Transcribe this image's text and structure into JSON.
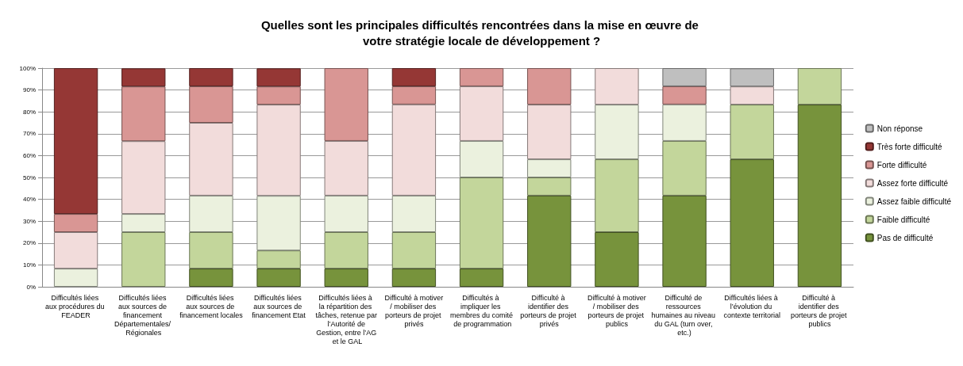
{
  "chart_data": {
    "type": "bar",
    "stacked": true,
    "title": "Quelles sont les principales difficultés rencontrées dans la mise en œuvre de votre stratégie locale de développement ?",
    "categories": [
      "Difficultés liées aux procédures du FEADER",
      "Difficultés liées aux sources de financement Départementales/ Régionales",
      "Difficultés liées aux sources de financement locales",
      "Difficultés liées aux sources de financement Etat",
      "Difficultés liées à la répartition des tâches, retenue par l’Autorité de Gestion, entre l’AG et le GAL",
      "Difficulté à motiver/ mobiliser des porteurs de projet privés",
      "Difficultés à impliquer les membres du comité de programmation",
      "Difficulté à identifier des porteurs de projet privés",
      "Difficulté à motiver/ mobiliser des porteurs de projet publics",
      "Difficulté de ressources humaines au niveau du GAL (turn over, etc.)",
      "Difficultés liées à l’évolution du contexte territorial",
      "Difficulté à identifier des porteurs de projet publics"
    ],
    "series": [
      {
        "name": "Pas de difficulté",
        "color": "#77933c",
        "values": [
          0,
          0,
          8.3,
          8.3,
          8.3,
          8.3,
          8.3,
          41.7,
          25,
          41.7,
          58.3,
          83.3
        ]
      },
      {
        "name": "Faible difficulté",
        "color": "#c3d69b",
        "values": [
          0,
          25,
          16.7,
          8.3,
          16.7,
          16.7,
          41.7,
          8.3,
          33.3,
          25,
          25,
          16.7
        ]
      },
      {
        "name": "Assez faible difficulté",
        "color": "#ebf1de",
        "values": [
          8.3,
          8.3,
          16.7,
          25,
          16.7,
          16.7,
          16.7,
          8.3,
          25,
          16.7,
          0,
          0
        ]
      },
      {
        "name": "Assez forte difficulté",
        "color": "#f2dcdb",
        "values": [
          16.7,
          33.3,
          33.3,
          41.7,
          25,
          41.7,
          25,
          25,
          16.7,
          0,
          8.3,
          0
        ]
      },
      {
        "name": "Forte difficulté",
        "color": "#d99694",
        "values": [
          8.3,
          25,
          16.7,
          8.3,
          33.3,
          8.3,
          8.3,
          16.7,
          0,
          8.3,
          0,
          0
        ]
      },
      {
        "name": "Très forte difficulté",
        "color": "#953735",
        "values": [
          66.7,
          8.3,
          8.3,
          8.3,
          0,
          8.3,
          0,
          0,
          0,
          0,
          0,
          0
        ]
      },
      {
        "name": "Non réponse",
        "color": "#bfbfbf",
        "values": [
          0,
          0,
          0,
          0,
          0,
          0,
          0,
          0,
          0,
          8.3,
          8.3,
          0
        ]
      }
    ],
    "ylim": [
      0,
      100
    ],
    "yticks": [
      {
        "value": 0,
        "label": "0%"
      },
      {
        "value": 10,
        "label": "10%"
      },
      {
        "value": 20,
        "label": "20%"
      },
      {
        "value": 30,
        "label": "30%"
      },
      {
        "value": 40,
        "label": "40%"
      },
      {
        "value": 50,
        "label": "50%"
      },
      {
        "value": 60,
        "label": "60%"
      },
      {
        "value": 70,
        "label": "70%"
      },
      {
        "value": 80,
        "label": "80%"
      },
      {
        "value": 90,
        "label": "90%"
      },
      {
        "value": 100,
        "label": "100%"
      }
    ],
    "grid": "y",
    "legend": "right"
  }
}
